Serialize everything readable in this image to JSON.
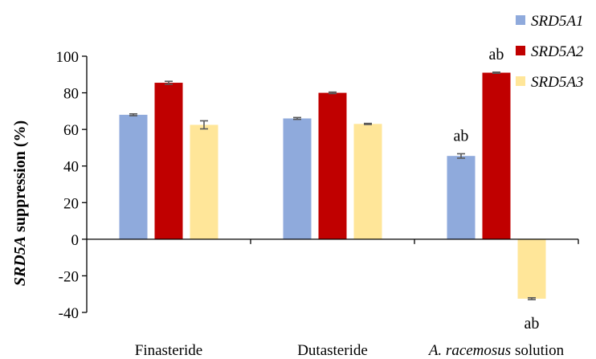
{
  "chart_data": {
    "type": "bar",
    "title": "",
    "xlabel": "",
    "ylabel_italic": "SRD5A",
    "ylabel_rest": " suppression (%)",
    "ylim": [
      -40,
      100
    ],
    "yticks": [
      "100",
      "80",
      "60",
      "40",
      "20",
      "0",
      "-20",
      "-40"
    ],
    "ytick_values": [
      100,
      80,
      60,
      40,
      20,
      0,
      -20,
      -40
    ],
    "categories": [
      {
        "name": "Finasteride",
        "italic_part": "",
        "rest": "Finasteride"
      },
      {
        "name": "Dutasteride",
        "italic_part": "",
        "rest": "Dutasteride"
      },
      {
        "name": "A. racemosus solution",
        "italic_part": "A. racemosus",
        "rest": " solution"
      }
    ],
    "series": [
      {
        "name": "SRD5A1",
        "color": "#8faadc",
        "values": [
          68,
          66,
          45.5
        ],
        "errors": [
          0.5,
          0.5,
          1.2
        ],
        "annotations": [
          "",
          "",
          "ab"
        ]
      },
      {
        "name": "SRD5A2",
        "color": "#c00000",
        "values": [
          85.5,
          80,
          91
        ],
        "errors": [
          0.8,
          0.4,
          0.3
        ],
        "annotations": [
          "",
          "",
          "ab"
        ]
      },
      {
        "name": "SRD5A3",
        "color": "#ffe699",
        "values": [
          62.5,
          63,
          -32.5
        ],
        "errors": [
          2.2,
          0.3,
          0.5
        ],
        "annotations": [
          "",
          "",
          "ab"
        ]
      }
    ],
    "legend_position": "top-right",
    "grid": false,
    "error_bar_color": "#595959"
  }
}
